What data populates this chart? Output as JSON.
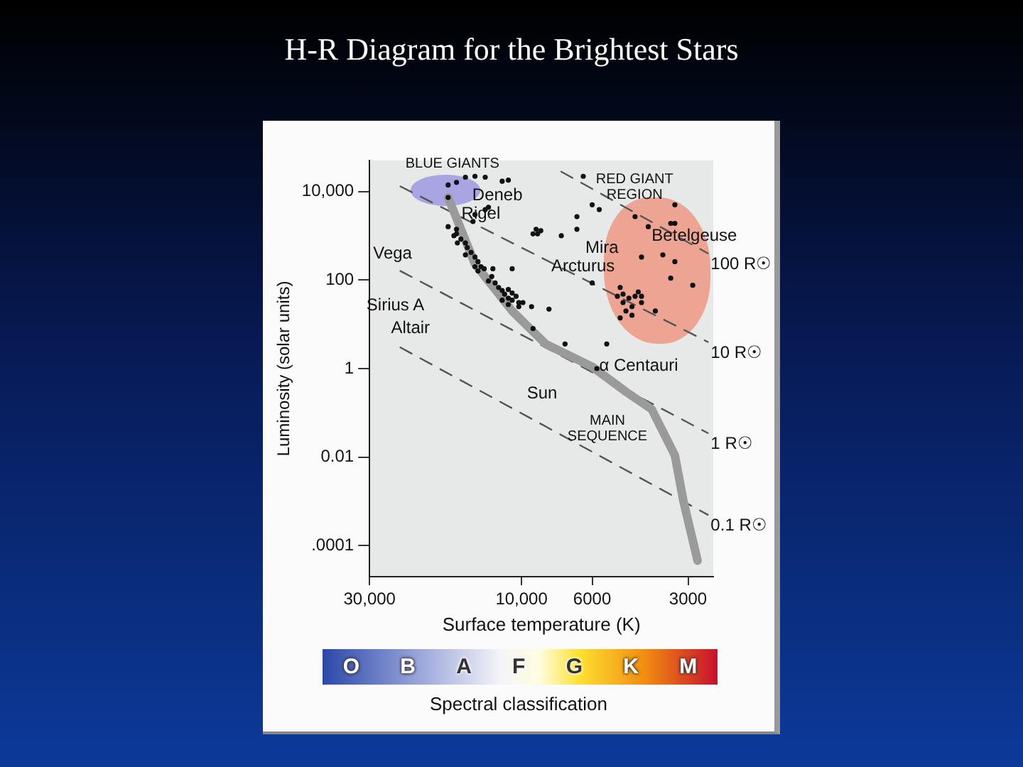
{
  "chart_data": {
    "type": "scatter",
    "title": "H-R Diagram for the Brightest Stars",
    "xlabel": "Surface temperature (K)",
    "ylabel": "Luminosity (solar units)",
    "log": "xy",
    "grid": false,
    "legend": false,
    "xlim": [
      30000,
      2500
    ],
    "xticks": [
      {
        "value": 30000,
        "label": "30,000"
      },
      {
        "value": 10000,
        "label": "10,000"
      },
      6000,
      3000
    ],
    "ylim": [
      2e-05,
      50000
    ],
    "yticks": [
      {
        "value": 10000,
        "label": "10,000"
      },
      100,
      1,
      0.01,
      {
        "value": 0.0001,
        "label": ".0001"
      }
    ],
    "series": [
      {
        "type": "line",
        "marker": "none",
        "color": "#9a9a9a",
        "line_style": "solid",
        "x": [
          17000,
          14000,
          10700,
          8400,
          6000,
          4700,
          3900,
          3300,
          3100,
          2800
        ],
        "values": [
          7300,
          230,
          20,
          3.6,
          1.1,
          0.3,
          0.12,
          0.011,
          0.001,
          4.6e-05
        ]
      },
      {
        "type": "line",
        "marker": "none",
        "name": "100 R☉",
        "color": "#555555",
        "line_style": "dashed",
        "x": [
          7500,
          2600
        ],
        "values": [
          28000,
          400
        ]
      },
      {
        "type": "line",
        "marker": "none",
        "name": "10 R☉",
        "color": "#555555",
        "line_style": "dashed",
        "x": [
          24000,
          2600
        ],
        "values": [
          13000,
          4
        ]
      },
      {
        "type": "line",
        "marker": "none",
        "name": "1 R☉",
        "color": "#555555",
        "line_style": "dashed",
        "x": [
          24000,
          2600
        ],
        "values": [
          160,
          0.035
        ]
      },
      {
        "type": "line",
        "marker": "none",
        "name": "0.1 R☉",
        "color": "#555555",
        "line_style": "dashed",
        "x": [
          24000,
          2600
        ],
        "values": [
          3,
          0.0005
        ]
      },
      {
        "marker": "circle",
        "color": "#111111",
        "x": [
          17000,
          16000,
          15000,
          14000,
          13000,
          11500,
          11000,
          17000,
          14000,
          13000,
          12700,
          14200,
          17000,
          16000,
          16000,
          16300,
          15500,
          15000,
          15900,
          14800,
          14400,
          14000,
          15000,
          13700,
          13400,
          14000,
          13700,
          13100,
          12300,
          12400,
          12700,
          12100,
          11800,
          11500,
          11000,
          11300,
          10700,
          10400,
          11000,
          10700,
          10200,
          11500,
          11000,
          10200,
          9900,
          9300,
          9200,
          10700,
          9000,
          9200,
          8900,
          8700,
          7500,
          6700,
          6700,
          6400,
          6000,
          5700,
          6000,
          8200,
          5400,
          7300,
          5800,
          4400,
          4000,
          3300,
          3300,
          3400,
          3600,
          4200,
          3300,
          3400,
          2900,
          4900,
          5000,
          4800,
          4600,
          4800,
          4500,
          4700,
          4900,
          4400,
          4300,
          4200,
          4200,
          4500,
          3800
        ],
        "values": [
          14000,
          16000,
          21000,
          22000,
          21000,
          17000,
          18000,
          7300,
          3000,
          3900,
          4400,
          2100,
          1600,
          1400,
          1100,
          1000,
          840,
          690,
          690,
          540,
          420,
          330,
          370,
          260,
          200,
          200,
          160,
          180,
          180,
          120,
          95,
          86,
          68,
          58,
          61,
          48,
          51,
          43,
          39,
          35,
          31,
          35,
          28,
          25,
          31,
          25,
          8,
          180,
          1400,
          1100,
          1100,
          1300,
          1000,
          2700,
          1400,
          22000,
          5000,
          3900,
          86,
          22,
          3.6,
          3.6,
          1,
          2700,
          1600,
          5000,
          1900,
          1900,
          370,
          330,
          260,
          110,
          76,
          68,
          43,
          48,
          39,
          31,
          25,
          20,
          14,
          43,
          54,
          43,
          31,
          16,
          20
        ]
      }
    ],
    "annotations": [
      "BLUE GIANTS",
      "Deneb",
      "Rigel",
      "Vega",
      "Sirius A",
      "Altair",
      "RED GIANT\nREGION",
      "Betelgeuse",
      "Mira",
      "Arcturus",
      "α Centauri",
      "Sun",
      "MAIN\nSEQUENCE",
      "O",
      "B",
      "A",
      "F",
      "G",
      "K",
      "M",
      "Spectral classification"
    ]
  }
}
